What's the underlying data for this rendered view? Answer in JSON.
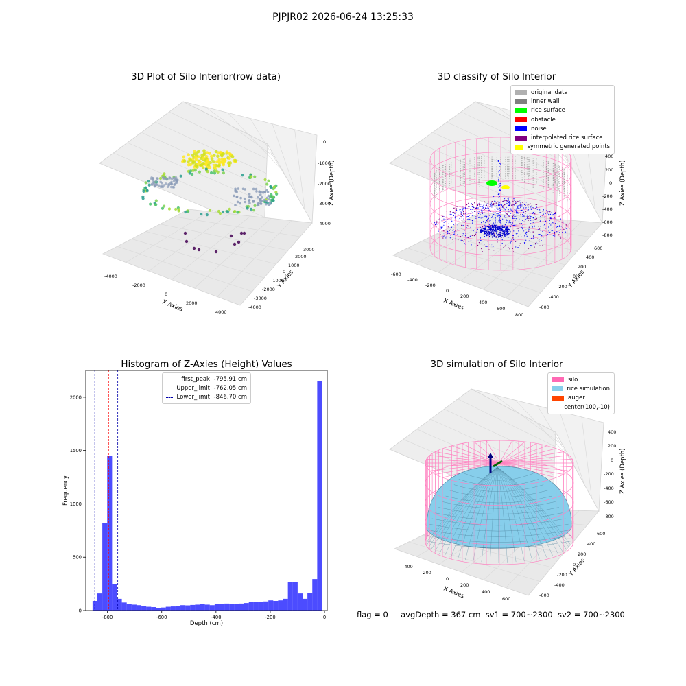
{
  "suptitle": "PJPJR02 2026-06-24 13:25:33",
  "panels": {
    "raw": {
      "title": "3D Plot of Silo Interior(row data)",
      "xlabel": "X Axies",
      "ylabel": "Y Axies",
      "zlabel": "Z Axies (Depth)",
      "xticks": [
        "-4000",
        "-2000",
        "0",
        "2000",
        "4000"
      ],
      "yticks": [
        "-4000",
        "-3000",
        "-2000",
        "-1000",
        "0",
        "1000",
        "2000",
        "3000"
      ],
      "zticks": [
        "0",
        "-1000",
        "-2000",
        "-3000",
        "-4000"
      ]
    },
    "classify": {
      "title": "3D classify of Silo Interior",
      "xlabel": "X Axies",
      "ylabel": "Y Axies",
      "zlabel": "Z Axies (Depth)",
      "xticks": [
        "-600",
        "-400",
        "-200",
        "0",
        "200",
        "400",
        "600",
        "800"
      ],
      "yticks": [
        "-600",
        "-400",
        "-200",
        "0",
        "200",
        "400",
        "600"
      ],
      "zticks": [
        "400",
        "200",
        "0",
        "-200",
        "-400",
        "-600",
        "-800"
      ],
      "legend": [
        {
          "label": "original data",
          "color": "#b0b0b0"
        },
        {
          "label": "inner wall",
          "color": "#808080"
        },
        {
          "label": "rice surface",
          "color": "#00ff00"
        },
        {
          "label": "obstacle",
          "color": "#ff0000"
        },
        {
          "label": "noise",
          "color": "#0000ff"
        },
        {
          "label": "interpolated rice surface",
          "color": "#800080"
        },
        {
          "label": "symmetric generated points",
          "color": "#ffff00"
        }
      ]
    },
    "simulation": {
      "title": "3D simulation of Silo Interior",
      "xlabel": "X Axies",
      "ylabel": "Y Axies",
      "zlabel": "Z Axies (Depth)",
      "xticks": [
        "-400",
        "-200",
        "0",
        "200",
        "400",
        "600"
      ],
      "yticks": [
        "-600",
        "-400",
        "-200",
        "0",
        "200",
        "400",
        "600"
      ],
      "zticks": [
        "400",
        "200",
        "0",
        "-200",
        "-400",
        "-600",
        "-800"
      ],
      "legend": [
        {
          "label": "silo",
          "color": "#ff69b4"
        },
        {
          "label": "rice simulation",
          "color": "#87ceeb"
        },
        {
          "label": "auger",
          "color": "#ff4500"
        },
        {
          "label": "center(100,-10)",
          "color": ""
        }
      ]
    }
  },
  "status": {
    "flag": "flag = 0",
    "avg_depth": "avgDepth = 367 cm",
    "sv1": "sv1 = 700~2300",
    "sv2": "sv2 = 700~2300"
  },
  "chart_data": [
    {
      "type": "histogram",
      "title": "Histogram of Z-Axies (Height) Values",
      "xlabel": "Depth (cm)",
      "ylabel": "Frequency",
      "xlim": [
        -880,
        10
      ],
      "ylim": [
        0,
        2250
      ],
      "xticks": [
        -800,
        -600,
        -400,
        -200,
        0
      ],
      "yticks": [
        0,
        500,
        1000,
        1500,
        2000
      ],
      "bar_color": "#0000ff",
      "bins": [
        {
          "x0": -855,
          "x1": -837,
          "count": 90
        },
        {
          "x0": -837,
          "x1": -819,
          "count": 160
        },
        {
          "x0": -819,
          "x1": -801,
          "count": 820
        },
        {
          "x0": -801,
          "x1": -783,
          "count": 1450
        },
        {
          "x0": -783,
          "x1": -765,
          "count": 250
        },
        {
          "x0": -765,
          "x1": -747,
          "count": 110
        },
        {
          "x0": -747,
          "x1": -729,
          "count": 75
        },
        {
          "x0": -729,
          "x1": -711,
          "count": 60
        },
        {
          "x0": -711,
          "x1": -693,
          "count": 55
        },
        {
          "x0": -693,
          "x1": -675,
          "count": 50
        },
        {
          "x0": -675,
          "x1": -657,
          "count": 40
        },
        {
          "x0": -657,
          "x1": -639,
          "count": 35
        },
        {
          "x0": -639,
          "x1": -621,
          "count": 32
        },
        {
          "x0": -621,
          "x1": -603,
          "count": 25
        },
        {
          "x0": -603,
          "x1": -585,
          "count": 28
        },
        {
          "x0": -585,
          "x1": -567,
          "count": 35
        },
        {
          "x0": -567,
          "x1": -549,
          "count": 38
        },
        {
          "x0": -549,
          "x1": -531,
          "count": 45
        },
        {
          "x0": -531,
          "x1": -513,
          "count": 50
        },
        {
          "x0": -513,
          "x1": -495,
          "count": 48
        },
        {
          "x0": -495,
          "x1": -477,
          "count": 52
        },
        {
          "x0": -477,
          "x1": -459,
          "count": 55
        },
        {
          "x0": -459,
          "x1": -441,
          "count": 62
        },
        {
          "x0": -441,
          "x1": -423,
          "count": 55
        },
        {
          "x0": -423,
          "x1": -405,
          "count": 50
        },
        {
          "x0": -405,
          "x1": -387,
          "count": 62
        },
        {
          "x0": -387,
          "x1": -369,
          "count": 60
        },
        {
          "x0": -369,
          "x1": -351,
          "count": 65
        },
        {
          "x0": -351,
          "x1": -333,
          "count": 62
        },
        {
          "x0": -333,
          "x1": -315,
          "count": 58
        },
        {
          "x0": -315,
          "x1": -297,
          "count": 65
        },
        {
          "x0": -297,
          "x1": -279,
          "count": 70
        },
        {
          "x0": -279,
          "x1": -261,
          "count": 78
        },
        {
          "x0": -261,
          "x1": -243,
          "count": 82
        },
        {
          "x0": -243,
          "x1": -225,
          "count": 80
        },
        {
          "x0": -225,
          "x1": -207,
          "count": 85
        },
        {
          "x0": -207,
          "x1": -189,
          "count": 95
        },
        {
          "x0": -189,
          "x1": -171,
          "count": 90
        },
        {
          "x0": -171,
          "x1": -153,
          "count": 95
        },
        {
          "x0": -153,
          "x1": -135,
          "count": 110
        },
        {
          "x0": -135,
          "x1": -117,
          "count": 270
        },
        {
          "x0": -117,
          "x1": -99,
          "count": 270
        },
        {
          "x0": -99,
          "x1": -81,
          "count": 160
        },
        {
          "x0": -81,
          "x1": -63,
          "count": 110
        },
        {
          "x0": -63,
          "x1": -45,
          "count": 165
        },
        {
          "x0": -45,
          "x1": -27,
          "count": 295
        },
        {
          "x0": -27,
          "x1": -9,
          "count": 2150
        }
      ],
      "vlines": [
        {
          "label": "first_peak: -795.91 cm",
          "x": -795.91,
          "color": "#ff0000"
        },
        {
          "label": "Upper_limit: -762.05 cm",
          "x": -762.05,
          "color": "#0000aa"
        },
        {
          "label": "Lower_limit: -846.70 cm",
          "x": -846.7,
          "color": "#0000aa"
        }
      ],
      "legend_placement": "top-center"
    }
  ]
}
